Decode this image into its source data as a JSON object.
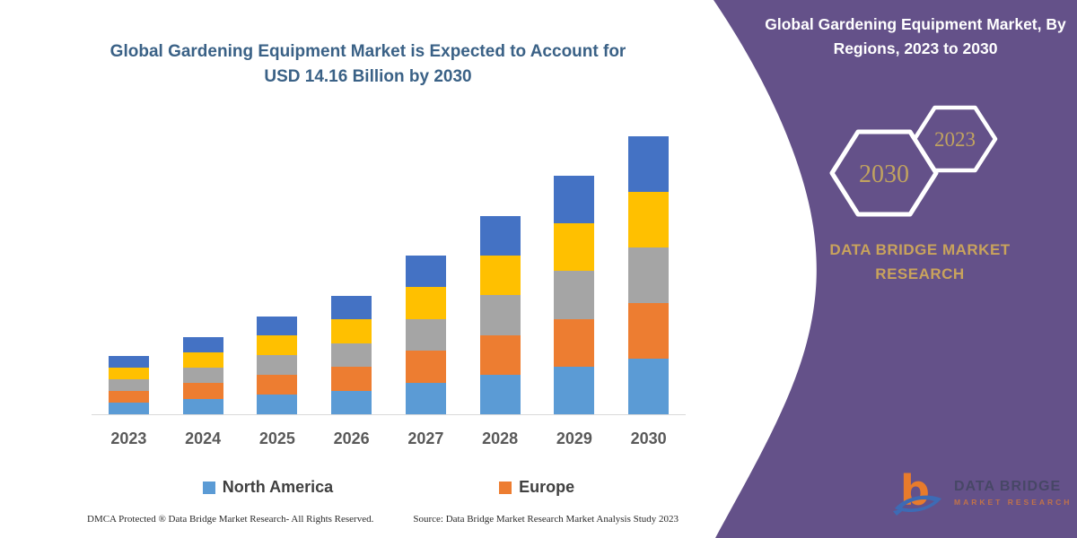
{
  "chart": {
    "title": "Global Gardening Equipment Market is Expected to Account for USD 14.16 Billion by 2030"
  },
  "chart_data": {
    "type": "bar",
    "stacked": true,
    "title": "Global Gardening Equipment Market is Expected to Account for USD 14.16 Billion by 2030",
    "unit": "USD Billion",
    "categories": [
      "2023",
      "2024",
      "2025",
      "2026",
      "2027",
      "2028",
      "2029",
      "2030"
    ],
    "series": [
      {
        "name": "North America",
        "color": "#5B9BD5",
        "in_legend": true,
        "values": [
          0.6,
          0.79,
          1.0,
          1.21,
          1.62,
          2.02,
          2.43,
          2.83
        ]
      },
      {
        "name": "Europe",
        "color": "#ED7D31",
        "in_legend": true,
        "values": [
          0.6,
          0.79,
          1.0,
          1.21,
          1.62,
          2.02,
          2.43,
          2.83
        ]
      },
      {
        "name": "",
        "color": "#A5A5A5",
        "in_legend": false,
        "values": [
          0.6,
          0.79,
          1.0,
          1.21,
          1.62,
          2.02,
          2.43,
          2.83
        ]
      },
      {
        "name": "",
        "color": "#FFC000",
        "in_legend": false,
        "values": [
          0.6,
          0.79,
          1.0,
          1.21,
          1.62,
          2.02,
          2.43,
          2.83
        ]
      },
      {
        "name": "",
        "color": "#4472C4",
        "in_legend": false,
        "values": [
          0.6,
          0.79,
          1.0,
          1.21,
          1.62,
          2.02,
          2.43,
          2.83
        ]
      }
    ],
    "totals": [
      3.0,
      3.95,
      5.0,
      6.05,
      8.1,
      10.1,
      12.15,
      14.16
    ],
    "ylim": [
      0,
      14.75
    ],
    "gridlines": false,
    "legend_position": "bottom"
  },
  "legend": [
    {
      "label": "North America",
      "color": "#5B9BD5"
    },
    {
      "label": "Europe",
      "color": "#ED7D31"
    }
  ],
  "footer": {
    "left": "DMCA Protected ® Data Bridge Market Research-  All Rights Reserved.",
    "right": "Source: Data Bridge Market Research  Market Analysis Study 2023"
  },
  "panel": {
    "title": "Global Gardening Equipment Market, By Regions, 2023 to 2030",
    "hexagons": [
      {
        "label": "2030"
      },
      {
        "label": "2023"
      }
    ],
    "brand_line1": "DATA BRIDGE MARKET",
    "brand_line2": "RESEARCH",
    "logo_name": "DATA BRIDGE",
    "logo_tagline": "MARKET RESEARCH",
    "colors": {
      "background": "#645189",
      "accent_gold": "#C9A35C"
    }
  }
}
